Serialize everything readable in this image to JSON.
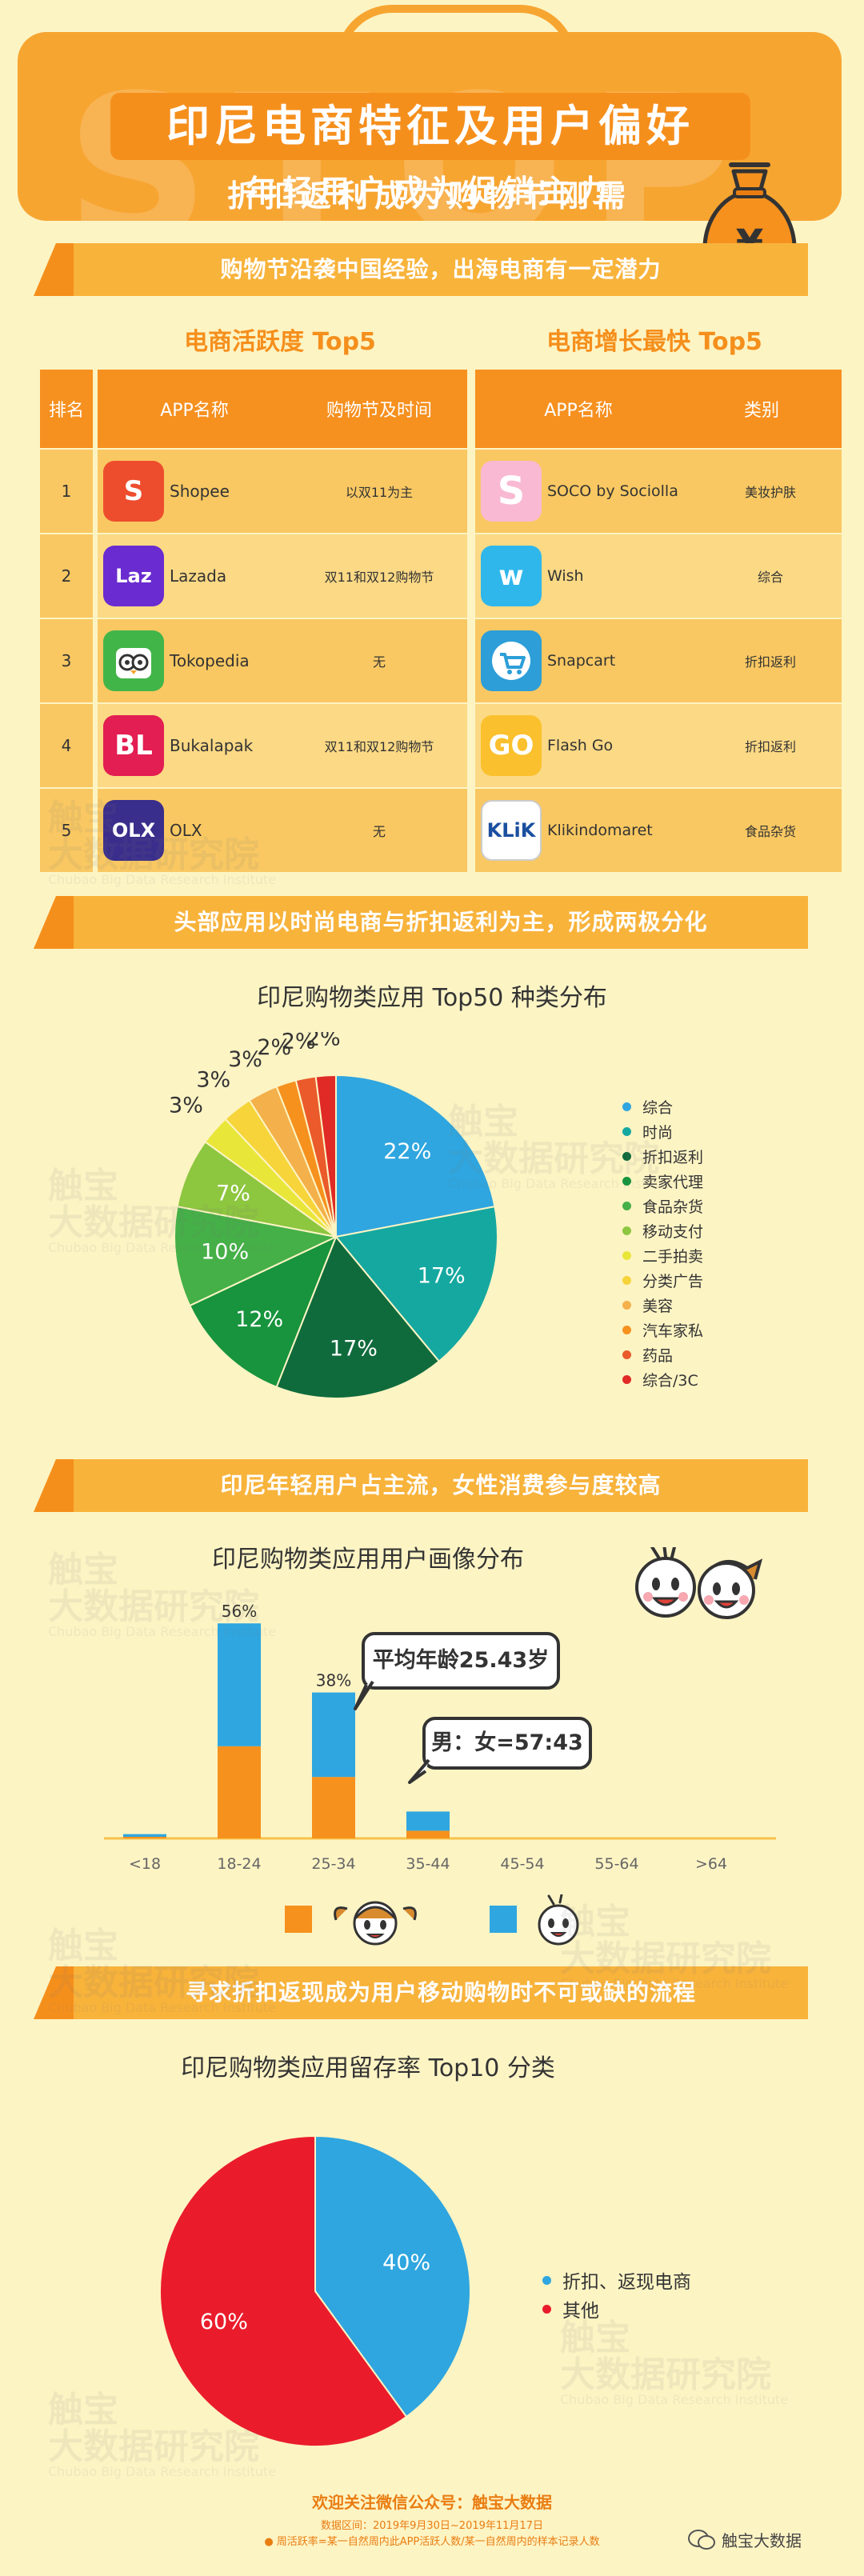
{
  "header": {
    "deco": "STOP",
    "title": "印尼电商特征及用户偏好",
    "subtitle_line1": "年轻用户成为促销主力",
    "subtitle_line2": "折扣返利成为购物节刚需",
    "bag_symbol": "¥"
  },
  "section1": {
    "banner": "购物节沿袭中国经验，出海电商有一定潜力",
    "left_title": "电商活跃度 Top5",
    "right_title": "电商增长最快 Top5",
    "left_headers": [
      "排名",
      "APP名称",
      "购物节及时间"
    ],
    "right_headers": [
      "APP名称",
      "类别"
    ],
    "left_rows": [
      {
        "rank": "1",
        "name": "Shopee",
        "fest": "以双11为主",
        "logo_text": "S",
        "logo_color": "#ee4d2d",
        "logo_icon": "shopee-bag-icon"
      },
      {
        "rank": "2",
        "name": "Lazada",
        "fest": "双11和双12购物节",
        "logo_text": "Laz",
        "logo_color": "#6a2bd0",
        "logo_icon": "lazada-icon"
      },
      {
        "rank": "3",
        "name": "Tokopedia",
        "fest": "无",
        "logo_text": "",
        "logo_color": "#42b549",
        "logo_icon": "tokopedia-owl-icon"
      },
      {
        "rank": "4",
        "name": "Bukalapak",
        "fest": "双11和双12购物节",
        "logo_text": "BL",
        "logo_color": "#e31e52",
        "logo_icon": "bukalapak-icon"
      },
      {
        "rank": "5",
        "name": "OLX",
        "fest": "无",
        "logo_text": "OLX",
        "logo_color": "#3a2e8c",
        "logo_icon": "olx-icon"
      }
    ],
    "right_rows": [
      {
        "name": "SOCO by Sociolla",
        "category": "美妆护肤",
        "logo_text": "S",
        "logo_color": "#f9b9d2",
        "logo_icon": "soco-icon"
      },
      {
        "name": "Wish",
        "category": "综合",
        "logo_text": "w",
        "logo_color": "#2fb7ec",
        "logo_icon": "wish-icon"
      },
      {
        "name": "Snapcart",
        "category": "折扣返利",
        "logo_text": "",
        "logo_color": "#2d9ed8",
        "logo_icon": "snapcart-cart-icon"
      },
      {
        "name": "Flash Go",
        "category": "折扣返利",
        "logo_text": "GO",
        "logo_color": "#fbc02d",
        "logo_icon": "flash-go-icon"
      },
      {
        "name": "Klikindomaret",
        "category": "食品杂货",
        "logo_text": "KLiK",
        "logo_color": "#ffffff",
        "logo_icon": "klik-icon"
      }
    ]
  },
  "section2": {
    "banner": "头部应用以时尚电商与折扣返利为主，形成两极分化",
    "title": "印尼购物类应用 Top50 种类分布"
  },
  "section3": {
    "banner": "印尼年轻用户占主流，女性消费参与度较高",
    "title": "印尼购物类应用用户画像分布",
    "bubble_age": "平均年龄25.43岁",
    "bubble_ratio": "男：女=57:43"
  },
  "section4": {
    "banner": "寻求折扣返现成为用户移动购物时不可或缺的流程",
    "title": "印尼购物类应用留存率 Top10 分类"
  },
  "footer": {
    "line1": "欢迎关注微信公众号：触宝大数据",
    "line2": "数据区间：2019年9月30日~2019年11月17日",
    "line3": "● 周活跃率=某一自然周内此APP活跃人数/某一自然周内的样本记录人数",
    "brand": "触宝大数据"
  },
  "watermark": {
    "line1": "触宝",
    "line2": "大数据研究院",
    "line3": "Chubao Big Data Research Institute"
  },
  "chart_data": [
    {
      "type": "pie",
      "title": "印尼购物类应用 Top50 种类分布",
      "labels": [
        "综合",
        "时尚",
        "折扣返利",
        "卖家代理",
        "食品杂货",
        "移动支付",
        "二手拍卖",
        "分类广告",
        "美容",
        "汽车家私",
        "药品",
        "综合/3C"
      ],
      "values": [
        22,
        17,
        17,
        12,
        10,
        7,
        3,
        3,
        3,
        2,
        2,
        2
      ],
      "value_labels": [
        "22%",
        "17%",
        "17%",
        "12%",
        "10%",
        "7%",
        "3%",
        "3%",
        "3%",
        "2%",
        "2%",
        "2%"
      ],
      "colors": [
        "#2fa6df",
        "#15a8a0",
        "#0f6b3c",
        "#17943d",
        "#45b047",
        "#8dc63f",
        "#e9e63a",
        "#f6d43a",
        "#f4b04a",
        "#f6911e",
        "#ea5a2b",
        "#e02a25"
      ],
      "legend": "right"
    },
    {
      "type": "bar",
      "stacked": true,
      "title": "印尼购物类应用用户画像分布",
      "categories": [
        "<18",
        "18-24",
        "25-34",
        "35-44",
        "45-54",
        "55-64",
        ">64"
      ],
      "totals": [
        1,
        56,
        38,
        7,
        0,
        0,
        0
      ],
      "total_labels": [
        "",
        "56%",
        "38%",
        "",
        "",
        "",
        ""
      ],
      "series": [
        {
          "name": "",
          "legend_icon": "girl-face-icon",
          "color": "#f6911e",
          "values": [
            0.3,
            24,
            16,
            2,
            0,
            0,
            0
          ]
        },
        {
          "name": "",
          "legend_icon": "boy-face-icon",
          "color": "#2fa6df",
          "values": [
            0.7,
            32,
            22,
            5,
            0,
            0,
            0
          ]
        }
      ],
      "ylim": [
        0,
        60
      ]
    },
    {
      "type": "pie",
      "title": "印尼购物类应用留存率 Top10 分类",
      "labels": [
        "折扣、返现电商",
        "其他"
      ],
      "values": [
        40,
        60
      ],
      "value_labels": [
        "40%",
        "60%"
      ],
      "colors": [
        "#2fa6df",
        "#ea1c2b"
      ],
      "legend": "right"
    }
  ]
}
